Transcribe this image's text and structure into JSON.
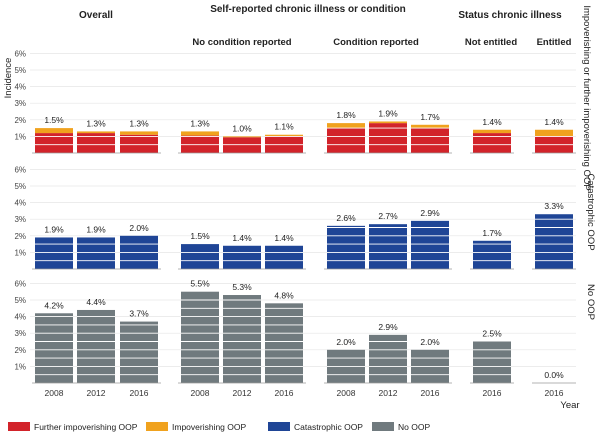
{
  "chart_data": {
    "type": "bar",
    "stacked": true,
    "ylabel": "Incidence",
    "xlabel": "Year",
    "ylim": [
      0,
      6
    ],
    "yticks": [
      "1%",
      "2%",
      "3%",
      "4%",
      "5%",
      "6%"
    ],
    "grid": true,
    "column_headers": {
      "overall": "Overall",
      "self_reported": "Self-reported chronic illness or condition",
      "status": "Status chronic illness",
      "no_condition": "No condition reported",
      "condition": "Condition reported",
      "not_entitled": "Not entitled",
      "entitled": "Entitled"
    },
    "row_labels": [
      "Impoverishing or further impoverishing OOP",
      "Catastrophic OOP",
      "No OOP"
    ],
    "legend": [
      {
        "name": "Further impoverishing OOP",
        "color": "#d2232a"
      },
      {
        "name": "Impoverishing OOP",
        "color": "#f0a21e"
      },
      {
        "name": "Catastrophic OOP",
        "color": "#1f4596"
      },
      {
        "name": "No OOP",
        "color": "#707a7e"
      }
    ],
    "panels": [
      {
        "years": [
          "2008",
          "2012",
          "2016"
        ],
        "rows": [
          {
            "labels": [
              "1.5%",
              "1.3%",
              "1.3%"
            ],
            "further": [
              1.2,
              1.2,
              1.1
            ],
            "impov": [
              0.3,
              0.1,
              0.2
            ]
          },
          {
            "labels": [
              "1.9%",
              "1.9%",
              "2.0%"
            ],
            "values": [
              1.9,
              1.9,
              2.0
            ]
          },
          {
            "labels": [
              "4.2%",
              "4.4%",
              "3.7%"
            ],
            "values": [
              4.2,
              4.4,
              3.7
            ]
          }
        ]
      },
      {
        "years": [
          "2008",
          "2012",
          "2016"
        ],
        "rows": [
          {
            "labels": [
              "1.3%",
              "1.0%",
              "1.1%"
            ],
            "further": [
              1.05,
              0.95,
              1.0
            ],
            "impov": [
              0.25,
              0.05,
              0.1
            ]
          },
          {
            "labels": [
              "1.5%",
              "1.4%",
              "1.4%"
            ],
            "values": [
              1.5,
              1.4,
              1.4
            ]
          },
          {
            "labels": [
              "5.5%",
              "5.3%",
              "4.8%"
            ],
            "values": [
              5.5,
              5.3,
              4.8
            ]
          }
        ]
      },
      {
        "years": [
          "2008",
          "2012",
          "2016"
        ],
        "rows": [
          {
            "labels": [
              "1.8%",
              "1.9%",
              "1.7%"
            ],
            "further": [
              1.5,
              1.8,
              1.5
            ],
            "impov": [
              0.3,
              0.1,
              0.2
            ]
          },
          {
            "labels": [
              "2.6%",
              "2.7%",
              "2.9%"
            ],
            "values": [
              2.6,
              2.7,
              2.9
            ]
          },
          {
            "labels": [
              "2.0%",
              "2.9%",
              "2.0%"
            ],
            "values": [
              2.0,
              2.9,
              2.0
            ]
          }
        ]
      },
      {
        "years": [
          "2016"
        ],
        "rows": [
          {
            "labels": [
              "1.4%"
            ],
            "further": [
              1.2
            ],
            "impov": [
              0.2
            ]
          },
          {
            "labels": [
              "1.7%"
            ],
            "values": [
              1.7
            ]
          },
          {
            "labels": [
              "2.5%"
            ],
            "values": [
              2.5
            ]
          }
        ]
      },
      {
        "years": [
          "2016"
        ],
        "rows": [
          {
            "labels": [
              "1.4%"
            ],
            "further": [
              1.0
            ],
            "impov": [
              0.4
            ]
          },
          {
            "labels": [
              "3.3%"
            ],
            "values": [
              3.3
            ]
          },
          {
            "labels": [
              "0.0%"
            ],
            "values": [
              0.0
            ]
          }
        ]
      }
    ]
  }
}
